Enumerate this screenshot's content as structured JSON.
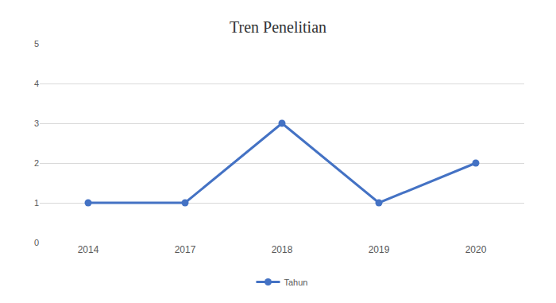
{
  "chart_data": {
    "type": "line",
    "title": "Tren Penelitian",
    "categories": [
      "2014",
      "2017",
      "2018",
      "2019",
      "2020"
    ],
    "series": [
      {
        "name": "Tahun",
        "color": "#4472c4",
        "values": [
          1,
          1,
          3,
          1,
          2
        ]
      }
    ],
    "ylim": [
      0,
      5
    ],
    "yticks": [
      0,
      1,
      2,
      3,
      4,
      5
    ],
    "grid": true,
    "legend": "bottom",
    "marker": "circle",
    "line_style": "solid"
  }
}
